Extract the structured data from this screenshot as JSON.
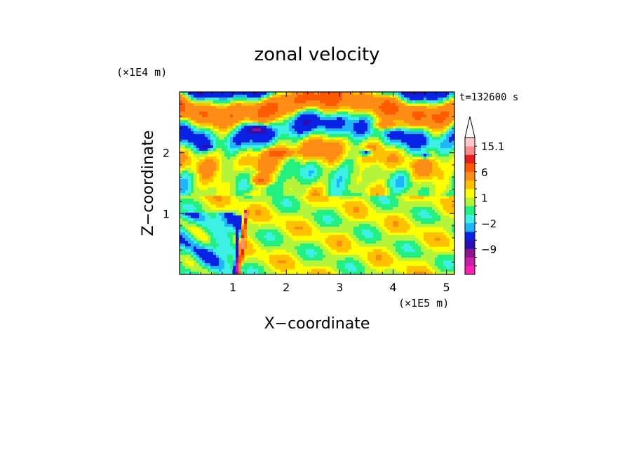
{
  "chart_data": {
    "type": "heatmap",
    "title": "zonal velocity",
    "xlabel": "X−coordinate",
    "ylabel": "Z−coordinate",
    "x_unit": "(×1E5 m)",
    "y_unit": "(×1E4 m)",
    "time_label": "t=132600 s",
    "xlim": [
      0,
      5.15
    ],
    "ylim": [
      0,
      3.0
    ],
    "x_ticks": [
      1,
      2,
      3,
      4,
      5
    ],
    "y_ticks": [
      1,
      2
    ],
    "x_tick_labels": [
      "1",
      "2",
      "3",
      "4",
      "5"
    ],
    "y_tick_labels": [
      "1",
      "2"
    ],
    "colorbar": {
      "levels": [
        -15,
        -12,
        -9,
        -6,
        -3,
        -2,
        -1,
        0,
        1,
        2,
        3,
        6,
        9,
        12,
        15.1
      ],
      "labeled_ticks": [
        {
          "value": 15.1,
          "label": "15.1"
        },
        {
          "value": 6,
          "label": "6"
        },
        {
          "value": 1,
          "label": "1"
        },
        {
          "value": -2,
          "label": "−2"
        },
        {
          "value": -9,
          "label": "−9"
        }
      ],
      "colors": [
        "#ff1fb4",
        "#c81ea8",
        "#8c1690",
        "#2a0fb4",
        "#0a22e6",
        "#1fb4ff",
        "#3cf0e6",
        "#22f080",
        "#b4f53c",
        "#ffff00",
        "#ffc000",
        "#ff8c14",
        "#ff5a00",
        "#e61e1e",
        "#ff8c8c",
        "#ffc8c8"
      ]
    },
    "field_regions": [
      {
        "x": [
          0,
          5.15
        ],
        "z": [
          0,
          3.0
        ],
        "class": "background",
        "value": 0.5
      },
      {
        "x": [
          0,
          5.15
        ],
        "z": [
          2.75,
          3.0
        ],
        "class": "upper",
        "value": 2.5
      },
      {
        "x": [
          0,
          1.1
        ],
        "z": [
          0,
          1.0
        ],
        "class": "low-left",
        "value": -1.5
      },
      {
        "x": [
          1.8,
          5.15
        ],
        "z": [
          0,
          1.4
        ],
        "class": "low-right",
        "value": 1.5
      },
      {
        "x": [
          1.0,
          1.9
        ],
        "z": [
          2.0,
          2.6
        ],
        "class": "band",
        "value": 5
      },
      {
        "x": [
          0.9,
          1.6
        ],
        "z": [
          2.3,
          2.6
        ],
        "class": "core",
        "value": -7
      },
      {
        "x": [
          2.6,
          4.3
        ],
        "z": [
          2.1,
          2.5
        ],
        "class": "band",
        "value": 4
      },
      {
        "x": [
          3.3,
          4.1
        ],
        "z": [
          1.9,
          2.1
        ],
        "class": "core",
        "value": -6
      },
      {
        "x": [
          1.1,
          1.2
        ],
        "z": [
          0,
          1.0
        ],
        "class": "jet",
        "value": 10
      },
      {
        "x": [
          1.1,
          1.3
        ],
        "z": [
          0,
          0.2
        ],
        "class": "core",
        "value": -8
      }
    ]
  }
}
